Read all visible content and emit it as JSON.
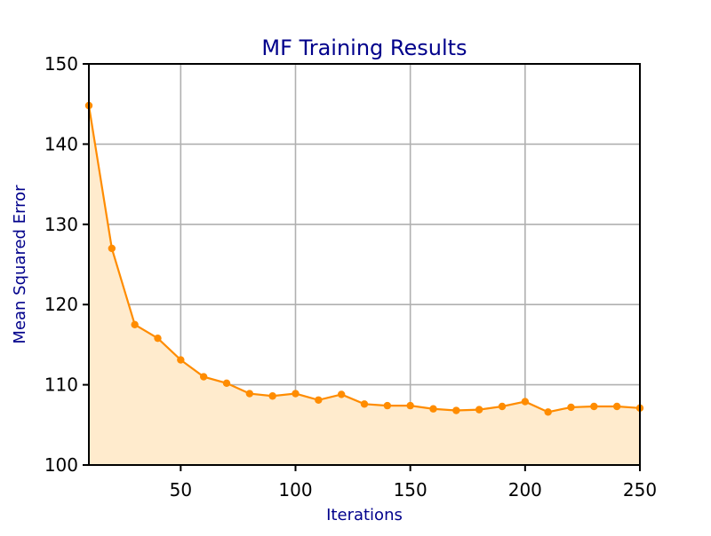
{
  "chart_data": {
    "type": "area",
    "title": "MF Training Results",
    "xlabel": "Iterations",
    "ylabel": "Mean Squared Error",
    "xlim": [
      10,
      250
    ],
    "ylim": [
      100,
      150
    ],
    "x_ticks": [
      50,
      100,
      150,
      200,
      250
    ],
    "y_ticks": [
      100,
      110,
      120,
      130,
      140,
      150
    ],
    "grid": true,
    "legend": "none",
    "colors": {
      "line": "#ff8c00",
      "fill": "#ffebcd",
      "title": "#00008b",
      "axis_label": "#00008b",
      "grid": "#b0b0b0"
    },
    "series": [
      {
        "x": [
          10,
          20,
          30,
          40,
          50,
          60,
          70,
          80,
          90,
          100,
          110,
          120,
          130,
          140,
          150,
          160,
          170,
          180,
          190,
          200,
          210,
          220,
          230,
          240,
          250
        ],
        "values": [
          144.8,
          127.0,
          117.5,
          115.8,
          113.1,
          111.0,
          110.2,
          108.9,
          108.6,
          108.9,
          108.1,
          108.8,
          107.6,
          107.4,
          107.4,
          107.0,
          106.8,
          106.9,
          107.3,
          107.9,
          106.6,
          107.2,
          107.3,
          107.3,
          107.1
        ]
      }
    ]
  }
}
